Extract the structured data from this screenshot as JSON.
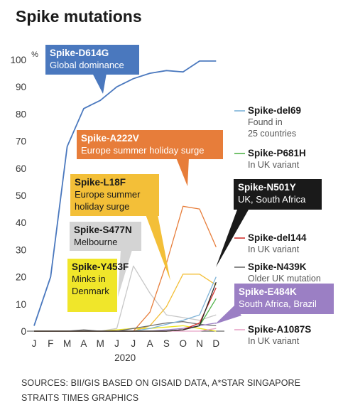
{
  "title": "Spike mutations",
  "sources": [
    "SOURCES: BII/GIS BASED ON GISAID DATA, A*STAR SINGAPORE",
    "STRAITS TIMES GRAPHICS"
  ],
  "chart_data": {
    "type": "line",
    "title": "Spike mutations",
    "ylabel": "%",
    "xlabel": "2020",
    "ylim": [
      0,
      100
    ],
    "yticks": [
      0,
      10,
      20,
      30,
      40,
      50,
      60,
      70,
      80,
      90,
      100
    ],
    "categories": [
      "J",
      "F",
      "M",
      "A",
      "M",
      "J",
      "J",
      "A",
      "S",
      "O",
      "N",
      "D"
    ],
    "series": [
      {
        "name": "Spike-D614G",
        "color": "#4a78be",
        "values": [
          2,
          20,
          68,
          82,
          85,
          90,
          93,
          95,
          96,
          95.5,
          99.5,
          99.5
        ]
      },
      {
        "name": "Spike-A222V",
        "color": "#e77d3a",
        "values": [
          0,
          0,
          0,
          0,
          0,
          0,
          0,
          7,
          25,
          46,
          45,
          31
        ]
      },
      {
        "name": "Spike-L18F",
        "color": "#f3bf38",
        "values": [
          0,
          0,
          0,
          0,
          0,
          0,
          0,
          2,
          9,
          21,
          21,
          17
        ]
      },
      {
        "name": "Spike-S477N",
        "color": "#c8c8c8",
        "values": [
          0,
          0,
          0,
          0,
          0,
          1,
          24,
          14,
          6,
          5,
          4,
          6
        ]
      },
      {
        "name": "Spike-Y453F",
        "color": "#ece31e",
        "values": [
          0,
          0,
          0,
          0,
          0,
          0.5,
          1,
          1,
          1.5,
          2,
          1,
          0
        ]
      },
      {
        "name": "Spike-del69",
        "color": "#7fb4d8",
        "values": [
          0,
          0,
          0,
          0,
          0,
          0,
          0,
          1,
          2.5,
          4,
          6,
          20
        ]
      },
      {
        "name": "Spike-P681H",
        "color": "#52b24a",
        "values": [
          0,
          0,
          0,
          0,
          0,
          0,
          0,
          0,
          0,
          0.5,
          2,
          12
        ]
      },
      {
        "name": "Spike-N501Y",
        "color": "#2a2a2a",
        "values": [
          0,
          0,
          0,
          0,
          0,
          0,
          0,
          0,
          0,
          0.5,
          2,
          18
        ]
      },
      {
        "name": "Spike-del144",
        "color": "#d2322d",
        "values": [
          0,
          0,
          0,
          0,
          0,
          0,
          0,
          0,
          0,
          0.5,
          3,
          16
        ]
      },
      {
        "name": "Spike-N439K",
        "color": "#6e6e6e",
        "values": [
          0,
          0,
          0,
          0.5,
          0,
          0,
          1,
          2,
          3,
          3.5,
          2.5,
          2
        ]
      },
      {
        "name": "Spike-E484K",
        "color": "#9b7fc4",
        "values": [
          0,
          0,
          0,
          0,
          0,
          0,
          0,
          0,
          0.5,
          1,
          2,
          3
        ]
      },
      {
        "name": "Spike-A1087S",
        "color": "#e7a3c6",
        "values": [
          0,
          0,
          0,
          0,
          0,
          0,
          0,
          0,
          0,
          0,
          0,
          1
        ]
      }
    ],
    "callouts": [
      {
        "series": "Spike-D614G",
        "lines": [
          "Spike-D614G",
          "Global dominance"
        ],
        "bg": "#4a78be",
        "fg": "#ffffff"
      },
      {
        "series": "Spike-A222V",
        "lines": [
          "Spike-A222V",
          "Europe summer holiday surge"
        ],
        "bg": "#e77d3a",
        "fg": "#ffffff"
      },
      {
        "series": "Spike-L18F",
        "lines": [
          "Spike-L18F",
          "Europe summer",
          "holiday surge"
        ],
        "bg": "#f3bf38",
        "fg": "#1a1a1a"
      },
      {
        "series": "Spike-S477N",
        "lines": [
          "Spike-S477N",
          "Melbourne"
        ],
        "bg": "#d4d4d4",
        "fg": "#1a1a1a"
      },
      {
        "series": "Spike-Y453F",
        "lines": [
          "Spike-Y453F",
          "Minks in",
          "Denmark"
        ],
        "bg": "#f0e62a",
        "fg": "#1a1a1a"
      },
      {
        "series": "Spike-N501Y",
        "lines": [
          "Spike-N501Y",
          "UK, South Africa"
        ],
        "bg": "#1a1a1a",
        "fg": "#ffffff"
      },
      {
        "series": "Spike-E484K",
        "lines": [
          "Spike-E484K",
          "South Africa, Brazil"
        ],
        "bg": "#9b7fc4",
        "fg": "#ffffff"
      }
    ],
    "legend": [
      {
        "series": "Spike-del69",
        "lines": [
          "Found in",
          "25 countries"
        ]
      },
      {
        "series": "Spike-P681H",
        "lines": [
          "In UK variant"
        ]
      },
      {
        "series": "Spike-del144",
        "lines": [
          "In UK variant"
        ]
      },
      {
        "series": "Spike-N439K",
        "lines": [
          "Older UK mutation"
        ]
      },
      {
        "series": "Spike-A1087S",
        "lines": [
          "In UK variant"
        ]
      }
    ]
  }
}
